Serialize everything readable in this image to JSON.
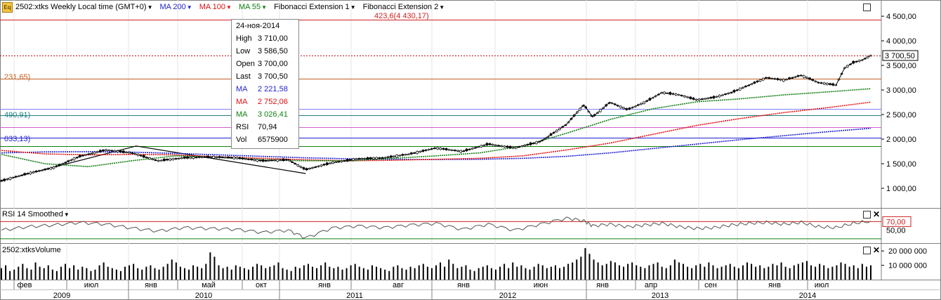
{
  "header": {
    "app_icon": "Eq",
    "symbol_label": "2502:xtks Weekly Local time (GMT+0)",
    "indicators": [
      {
        "label": "MA 200",
        "color": "#1f1fd0"
      },
      {
        "label": "MA 100",
        "color": "#e01010"
      },
      {
        "label": "MA 55",
        "color": "#108010"
      },
      {
        "label": "Fibonacci Extension 1",
        "color": "#000000"
      },
      {
        "label": "Fibonacci Extension 2",
        "color": "#000000"
      }
    ],
    "fib_top_label": "423,6(4 430,17)"
  },
  "fib_left_labels": [
    {
      "text": "231,65)",
      "color": "#c06020",
      "y": 3231.65
    },
    {
      "text": "490,91)",
      "color": "#208080",
      "y": 2490.91
    },
    {
      "text": "033,13)",
      "color": "#1f1fd0",
      "y": 2033.13
    }
  ],
  "tooltip": {
    "date": "24-ноя-2014",
    "rows": [
      {
        "k": "High",
        "v": "3 710,00",
        "color": "#000000"
      },
      {
        "k": "Low",
        "v": "3 586,50",
        "color": "#000000"
      },
      {
        "k": "Open",
        "v": "3 700,00",
        "color": "#000000"
      },
      {
        "k": "Last",
        "v": "3 700,50",
        "color": "#000000"
      },
      {
        "k": "MA",
        "v": "2 221,58",
        "color": "#1f1fd0"
      },
      {
        "k": "MA",
        "v": "2 752,06",
        "color": "#e01010"
      },
      {
        "k": "MA",
        "v": "3 026,41",
        "color": "#108010"
      },
      {
        "k": "RSI",
        "v": "70,94",
        "color": "#000000"
      },
      {
        "k": "Vol",
        "v": "6575900",
        "color": "#000000"
      }
    ]
  },
  "price_axis": {
    "ticks": [
      "4 500,00",
      "4 000,00",
      "3 500,00",
      "3 000,00",
      "2 500,00",
      "2 000,00",
      "1 500,00",
      "1 000,00"
    ],
    "tick_values": [
      4500,
      4000,
      3500,
      3000,
      2500,
      2000,
      1500,
      1000
    ],
    "last_label": "3 700,50",
    "last_value": 3700.5,
    "range": [
      600,
      4830
    ]
  },
  "rsi_panel": {
    "title": "RSI 14 Smoothed",
    "ticks": [
      "70,00",
      "50,00"
    ],
    "tick_values": [
      70,
      50
    ],
    "highlight": "70,00",
    "range": [
      20,
      100
    ]
  },
  "volume_panel": {
    "title": "2502:xtksVolume",
    "ticks": [
      "20 000 000",
      "10 000 000"
    ],
    "tick_values": [
      20000000,
      10000000
    ],
    "range": [
      0,
      25000000
    ]
  },
  "time_axis": {
    "months": [
      "фев",
      "июл",
      "янв",
      "май",
      "окт",
      "янв",
      "авг",
      "янв",
      "июн",
      "янв",
      "апр",
      "сен",
      "янв",
      "июл"
    ],
    "years": [
      "2009",
      "2010",
      "2011",
      "2012",
      "2013",
      "2014"
    ]
  },
  "chart_data": {
    "type": "line",
    "title": "",
    "xlabel": "",
    "ylabel": "",
    "ylim": [
      600,
      4830
    ],
    "horizontal_levels": [
      {
        "value": 4430.17,
        "color": "#d02020",
        "style": "solid"
      },
      {
        "value": 3700.5,
        "color": "#c01010",
        "style": "dotted"
      },
      {
        "value": 3231.65,
        "color": "#c06020",
        "style": "solid"
      },
      {
        "value": 2620,
        "color": "#8080ff",
        "style": "solid"
      },
      {
        "value": 2490.91,
        "color": "#208080",
        "style": "solid"
      },
      {
        "value": 2250,
        "color": "#d060d0",
        "style": "solid"
      },
      {
        "value": 2033.13,
        "color": "#1f1fd0",
        "style": "solid"
      },
      {
        "value": 1860,
        "color": "#108010",
        "style": "solid"
      }
    ],
    "series": [
      {
        "name": "MA 200",
        "color": "#1f1fd0",
        "x": [
          0,
          0.05,
          0.1,
          0.15,
          0.2,
          0.25,
          0.3,
          0.35,
          0.4,
          0.45,
          0.5,
          0.55,
          0.6,
          0.65,
          0.7,
          0.75,
          0.8,
          0.85,
          0.9,
          0.95,
          1.0
        ],
        "y": [
          1720,
          1740,
          1745,
          1735,
          1710,
          1680,
          1650,
          1620,
          1600,
          1590,
          1585,
          1590,
          1610,
          1650,
          1720,
          1810,
          1900,
          1990,
          2070,
          2150,
          2221.58
        ]
      },
      {
        "name": "MA 100",
        "color": "#e01010",
        "x": [
          0,
          0.05,
          0.1,
          0.15,
          0.2,
          0.25,
          0.3,
          0.35,
          0.4,
          0.45,
          0.5,
          0.55,
          0.6,
          0.65,
          0.7,
          0.75,
          0.8,
          0.85,
          0.9,
          0.95,
          1.0
        ],
        "y": [
          1770,
          1700,
          1680,
          1690,
          1680,
          1640,
          1610,
          1580,
          1560,
          1570,
          1590,
          1610,
          1660,
          1780,
          1920,
          2100,
          2280,
          2420,
          2540,
          2640,
          2752.06
        ]
      },
      {
        "name": "MA 55",
        "color": "#108010",
        "x": [
          0,
          0.05,
          0.1,
          0.15,
          0.2,
          0.25,
          0.3,
          0.35,
          0.4,
          0.45,
          0.5,
          0.55,
          0.6,
          0.65,
          0.7,
          0.75,
          0.8,
          0.85,
          0.9,
          0.95,
          1.0
        ],
        "y": [
          1690,
          1500,
          1440,
          1560,
          1660,
          1630,
          1580,
          1560,
          1560,
          1610,
          1660,
          1720,
          1860,
          2120,
          2400,
          2620,
          2760,
          2820,
          2900,
          2960,
          3026.41
        ]
      },
      {
        "name": "Price",
        "color": "#000000",
        "x": [
          0,
          0.03,
          0.06,
          0.09,
          0.12,
          0.15,
          0.18,
          0.21,
          0.24,
          0.27,
          0.3,
          0.33,
          0.35,
          0.38,
          0.41,
          0.44,
          0.47,
          0.5,
          0.53,
          0.56,
          0.59,
          0.62,
          0.65,
          0.67,
          0.68,
          0.7,
          0.72,
          0.74,
          0.76,
          0.78,
          0.8,
          0.82,
          0.84,
          0.86,
          0.88,
          0.9,
          0.92,
          0.94,
          0.96,
          0.97,
          0.98,
          0.99,
          1.0
        ],
        "y": [
          1150,
          1300,
          1420,
          1650,
          1780,
          1720,
          1560,
          1620,
          1640,
          1620,
          1560,
          1580,
          1380,
          1520,
          1600,
          1620,
          1700,
          1820,
          1750,
          1900,
          1820,
          1950,
          2300,
          2700,
          2450,
          2750,
          2600,
          2750,
          2950,
          2900,
          2800,
          2850,
          2950,
          3100,
          3250,
          3200,
          3300,
          3150,
          3100,
          3450,
          3560,
          3610,
          3700.5
        ]
      }
    ],
    "rsi": {
      "x": [
        0,
        0.03,
        0.06,
        0.09,
        0.12,
        0.15,
        0.18,
        0.21,
        0.24,
        0.27,
        0.3,
        0.33,
        0.35,
        0.38,
        0.41,
        0.44,
        0.47,
        0.5,
        0.53,
        0.56,
        0.59,
        0.62,
        0.65,
        0.67,
        0.68,
        0.7,
        0.72,
        0.74,
        0.76,
        0.78,
        0.8,
        0.82,
        0.84,
        0.86,
        0.88,
        0.9,
        0.92,
        0.94,
        0.96,
        0.98,
        1.0
      ],
      "y": [
        50,
        58,
        62,
        68,
        64,
        55,
        48,
        56,
        54,
        52,
        45,
        50,
        32,
        55,
        60,
        56,
        62,
        66,
        52,
        64,
        50,
        64,
        78,
        72,
        60,
        64,
        58,
        62,
        66,
        58,
        54,
        56,
        62,
        66,
        68,
        64,
        68,
        58,
        56,
        66,
        70.94
      ]
    },
    "volume_profile": [
      8,
      10,
      6,
      7,
      9,
      11,
      8,
      7,
      12,
      9,
      8,
      10,
      7,
      6,
      9,
      11,
      8,
      10,
      7,
      9,
      8,
      6,
      7,
      10,
      12,
      9,
      8,
      7,
      6,
      9,
      10,
      11,
      8,
      7,
      9,
      10,
      8,
      7,
      9,
      11,
      14,
      12,
      9,
      8,
      7,
      10,
      9,
      8,
      11,
      19,
      16,
      10,
      8,
      9,
      7,
      10,
      9,
      8,
      7,
      9,
      11,
      10,
      8,
      9,
      10,
      12,
      8,
      7,
      6,
      9,
      8,
      10,
      11,
      9,
      8,
      10,
      12,
      9,
      8,
      9,
      7,
      8,
      10,
      11,
      9,
      8,
      7,
      10,
      9,
      8,
      7,
      6,
      9,
      10,
      8,
      7,
      9,
      8,
      10,
      11,
      9,
      8,
      10,
      12,
      9,
      14,
      11,
      8,
      9,
      10,
      7,
      6,
      8,
      9,
      10,
      8,
      7,
      9,
      11,
      8,
      12,
      9,
      10,
      8,
      7,
      9,
      11,
      10,
      8,
      9,
      10,
      8,
      9,
      11,
      12,
      14,
      16,
      22,
      18,
      14,
      12,
      10,
      11,
      13,
      12,
      10,
      9,
      11,
      12,
      10,
      9,
      8,
      10,
      11,
      12,
      9,
      8,
      10,
      14,
      12,
      11,
      9,
      8,
      10,
      11,
      9,
      12,
      10,
      8,
      9,
      10,
      11,
      9,
      8,
      10,
      12,
      11,
      9,
      10,
      8,
      9,
      11,
      10,
      12,
      9,
      8,
      10,
      11,
      12,
      13,
      10,
      9,
      11,
      10,
      8,
      9,
      10,
      12,
      11,
      9,
      10,
      8,
      11,
      9,
      10
    ]
  }
}
